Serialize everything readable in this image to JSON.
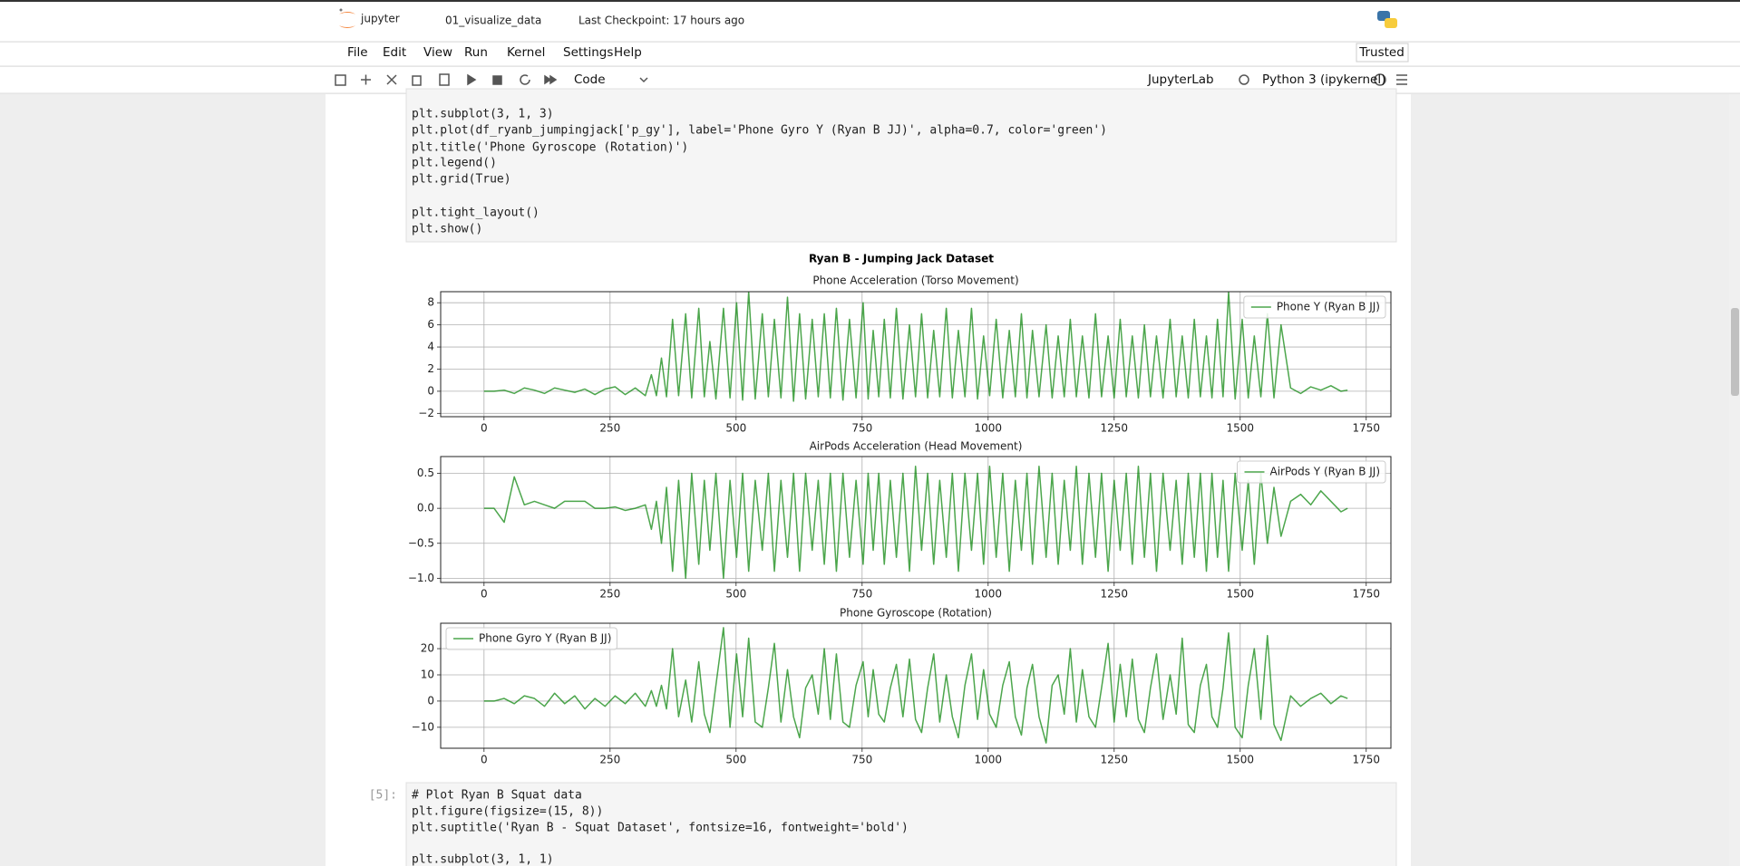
{
  "header": {
    "logo": "jupyter",
    "notebook_name": "01_visualize_data",
    "checkpoint": "Last Checkpoint: 17 hours ago"
  },
  "menu": [
    "File",
    "Edit",
    "View",
    "Run",
    "Kernel",
    "Settings",
    "Help"
  ],
  "trusted": "Trusted",
  "toolbar": {
    "cell_type": "Code",
    "jupyterlab": "JupyterLab",
    "kernel": "Python 3 (ipykernel)"
  },
  "cells": [
    {
      "lines": [
        "plt.subplot(3, 1, 3)",
        "plt.plot(df_ryanb_jumpingjack['p_gy'], label='Phone Gyro Y (Ryan B JJ)', alpha=0.7, color='green')",
        "plt.title('Phone Gyroscope (Rotation)')",
        "plt.legend()",
        "plt.grid(True)",
        "plt.tight_layout()",
        "plt.show()"
      ]
    },
    {
      "prompt": "[5]:",
      "lines": [
        "# Plot Ryan B Squat data",
        "plt.figure(figsize=(15, 8))",
        "plt.suptitle('Ryan B - Squat Dataset', fontsize=16, fontweight='bold')",
        "plt.subplot(3, 1, 1)"
      ]
    }
  ],
  "figure": {
    "suptitle": "Ryan B - Jumping Jack Dataset"
  },
  "chart_data": [
    {
      "type": "line",
      "title": "Phone Acceleration (Torso Movement)",
      "grid": true,
      "legend": "upper right",
      "xlim": [
        -86,
        1799
      ],
      "xticks": [
        0,
        250,
        500,
        750,
        1000,
        1250,
        1500,
        1750
      ],
      "ylim": [
        -2.3,
        9.0
      ],
      "yticks": [
        {
          "value": -2,
          "label": "−2"
        },
        0,
        2,
        4,
        6,
        8
      ],
      "x": [
        0,
        20,
        40,
        60,
        80,
        100,
        120,
        140,
        160,
        180,
        200,
        220,
        240,
        260,
        280,
        300,
        320,
        332,
        342,
        352,
        362,
        374,
        386,
        400,
        412,
        426,
        437,
        448,
        460,
        475,
        488,
        501,
        513,
        525,
        538,
        552,
        564,
        576,
        589,
        602,
        614,
        626,
        638,
        651,
        663,
        675,
        687,
        699,
        712,
        725,
        738,
        752,
        762,
        772,
        783,
        794,
        806,
        818,
        831,
        844,
        856,
        868,
        880,
        892,
        904,
        917,
        929,
        941,
        954,
        967,
        979,
        991,
        1003,
        1016,
        1029,
        1042,
        1054,
        1066,
        1077,
        1088,
        1101,
        1115,
        1127,
        1139,
        1151,
        1163,
        1175,
        1187,
        1200,
        1213,
        1225,
        1238,
        1250,
        1262,
        1274,
        1286,
        1298,
        1310,
        1322,
        1334,
        1347,
        1361,
        1373,
        1385,
        1397,
        1409,
        1421,
        1433,
        1444,
        1455,
        1466,
        1477,
        1490,
        1504,
        1516,
        1528,
        1541,
        1554,
        1567,
        1581,
        1600,
        1620,
        1640,
        1660,
        1680,
        1700,
        1713
      ],
      "series": [
        {
          "name": "Phone Y (Ryan B JJ)",
          "color": "green",
          "alpha": 0.7,
          "values": [
            0,
            0,
            0.1,
            -0.2,
            0.3,
            0.1,
            -0.2,
            0.3,
            0.1,
            -0.1,
            0.2,
            -0.3,
            0.2,
            0.4,
            -0.3,
            0.3,
            -0.4,
            1.5,
            -0.4,
            3,
            -0.5,
            6.5,
            -0.4,
            7,
            -0.6,
            7.5,
            -0.5,
            4.5,
            -0.7,
            7.5,
            -0.6,
            8,
            -0.8,
            9,
            -0.7,
            7,
            -0.5,
            6.5,
            -0.6,
            8.5,
            -0.9,
            7,
            -0.7,
            6.5,
            -0.5,
            7,
            -0.6,
            7.5,
            -0.8,
            6.5,
            -0.6,
            8,
            -0.7,
            5.5,
            -0.5,
            6.5,
            -0.6,
            7.5,
            -0.7,
            6,
            -0.5,
            7,
            -0.6,
            5.5,
            -0.5,
            7.5,
            -0.6,
            5.5,
            -0.5,
            7.5,
            -0.7,
            5,
            -0.4,
            6.5,
            -0.6,
            5.5,
            -0.5,
            7,
            -0.6,
            5.5,
            -0.5,
            6,
            -0.6,
            5,
            -0.5,
            6.5,
            -0.5,
            5,
            -0.6,
            7,
            -0.5,
            5,
            -0.6,
            6.5,
            -0.5,
            5,
            -0.6,
            6,
            -0.5,
            5,
            -0.6,
            6.5,
            -0.5,
            5,
            -0.6,
            6.5,
            -0.5,
            5,
            -0.6,
            6.5,
            -0.5,
            9,
            -0.7,
            6.5,
            -0.6,
            5,
            -0.5,
            7,
            -0.6,
            6,
            0.3,
            -0.2,
            0.4,
            0.1,
            0.5,
            0,
            0.1
          ]
        }
      ]
    },
    {
      "type": "line",
      "title": "AirPods Acceleration (Head Movement)",
      "grid": true,
      "legend": "upper right",
      "xlim": [
        -86,
        1799
      ],
      "xticks": [
        0,
        250,
        500,
        750,
        1000,
        1250,
        1500,
        1750
      ],
      "ylim": [
        -1.06,
        0.74
      ],
      "yticks": [
        {
          "value": -1,
          "label": "−1.0"
        },
        {
          "value": -0.5,
          "label": "−0.5"
        },
        {
          "value": 0,
          "label": "0.0"
        },
        0.5
      ],
      "x": [
        0,
        20,
        40,
        60,
        80,
        100,
        120,
        140,
        160,
        180,
        200,
        220,
        240,
        260,
        280,
        300,
        320,
        332,
        342,
        352,
        362,
        374,
        386,
        400,
        412,
        426,
        437,
        448,
        460,
        475,
        488,
        501,
        513,
        525,
        538,
        552,
        564,
        576,
        589,
        602,
        614,
        626,
        638,
        651,
        663,
        675,
        687,
        699,
        712,
        725,
        738,
        752,
        762,
        772,
        783,
        794,
        806,
        818,
        831,
        844,
        856,
        868,
        880,
        892,
        904,
        917,
        929,
        941,
        954,
        967,
        979,
        991,
        1003,
        1016,
        1029,
        1042,
        1054,
        1066,
        1077,
        1088,
        1101,
        1115,
        1127,
        1139,
        1151,
        1163,
        1175,
        1187,
        1200,
        1213,
        1225,
        1238,
        1250,
        1262,
        1274,
        1286,
        1298,
        1310,
        1322,
        1334,
        1347,
        1361,
        1373,
        1385,
        1397,
        1409,
        1421,
        1433,
        1444,
        1455,
        1466,
        1477,
        1490,
        1504,
        1516,
        1528,
        1541,
        1554,
        1567,
        1581,
        1600,
        1620,
        1640,
        1660,
        1680,
        1700,
        1713
      ],
      "series": [
        {
          "name": "AirPods Y (Ryan B JJ)",
          "color": "green",
          "alpha": 0.7,
          "values": [
            0,
            0,
            -0.2,
            0.45,
            0.05,
            0.1,
            0.05,
            0,
            0.1,
            0.1,
            0.1,
            0,
            0,
            0.02,
            -0.03,
            0,
            0.05,
            -0.3,
            0.1,
            -0.5,
            0.3,
            -0.9,
            0.4,
            -1.0,
            0.5,
            -0.8,
            0.4,
            -0.6,
            0.5,
            -1.0,
            0.4,
            -0.7,
            0.5,
            -0.9,
            0.4,
            -0.6,
            0.5,
            -0.9,
            0.4,
            -0.7,
            0.5,
            -0.9,
            0.5,
            -0.6,
            0.4,
            -0.8,
            0.5,
            -0.9,
            0.5,
            -0.7,
            0.4,
            -0.8,
            0.5,
            -0.6,
            0.5,
            -0.8,
            0.4,
            -0.7,
            0.5,
            -0.9,
            0.6,
            -0.6,
            0.5,
            -0.8,
            0.4,
            -0.7,
            0.5,
            -0.9,
            0.5,
            -0.6,
            0.5,
            -0.8,
            0.6,
            -0.7,
            0.5,
            -0.9,
            0.4,
            -0.6,
            0.5,
            -0.8,
            0.6,
            -0.7,
            0.5,
            -0.8,
            0.4,
            -0.6,
            0.6,
            -0.8,
            0.5,
            -0.7,
            0.5,
            -0.9,
            0.4,
            -0.6,
            0.5,
            -0.8,
            0.6,
            -0.7,
            0.5,
            -0.9,
            0.5,
            -0.6,
            0.4,
            -0.8,
            0.5,
            -0.7,
            0.5,
            -0.9,
            0.5,
            -0.7,
            0.4,
            -0.9,
            0.5,
            -0.6,
            0.4,
            -0.8,
            0.5,
            -0.5,
            0.3,
            -0.4,
            0.1,
            0.2,
            0.05,
            0.25,
            0.1,
            -0.05,
            0
          ]
        }
      ]
    },
    {
      "type": "line",
      "title": "Phone Gyroscope (Rotation)",
      "grid": true,
      "legend": "upper left",
      "xlim": [
        -86,
        1799
      ],
      "xticks": [
        0,
        250,
        500,
        750,
        1000,
        1250,
        1500,
        1750
      ],
      "ylim": [
        -18,
        29.7
      ],
      "yticks": [
        {
          "value": -10,
          "label": "−10"
        },
        0,
        10,
        20
      ],
      "x": [
        0,
        20,
        40,
        60,
        80,
        100,
        120,
        140,
        160,
        180,
        200,
        220,
        240,
        260,
        280,
        300,
        320,
        332,
        342,
        352,
        362,
        374,
        386,
        400,
        412,
        426,
        437,
        448,
        460,
        475,
        488,
        501,
        513,
        525,
        538,
        552,
        564,
        576,
        589,
        602,
        614,
        626,
        638,
        651,
        663,
        675,
        687,
        699,
        712,
        725,
        738,
        752,
        762,
        772,
        783,
        794,
        806,
        818,
        831,
        844,
        856,
        868,
        880,
        892,
        904,
        917,
        929,
        941,
        954,
        967,
        979,
        991,
        1003,
        1016,
        1029,
        1042,
        1054,
        1066,
        1077,
        1088,
        1101,
        1115,
        1127,
        1139,
        1151,
        1163,
        1175,
        1187,
        1200,
        1213,
        1225,
        1238,
        1250,
        1262,
        1274,
        1286,
        1298,
        1310,
        1322,
        1334,
        1347,
        1361,
        1373,
        1385,
        1397,
        1409,
        1421,
        1433,
        1444,
        1455,
        1466,
        1477,
        1490,
        1504,
        1516,
        1528,
        1541,
        1554,
        1567,
        1581,
        1600,
        1620,
        1640,
        1660,
        1680,
        1700,
        1713
      ],
      "series": [
        {
          "name": "Phone Gyro Y (Ryan B JJ)",
          "color": "green",
          "alpha": 0.7,
          "values": [
            0,
            0,
            1,
            -1,
            2,
            1,
            -2,
            3,
            -1,
            2,
            -3,
            1,
            -2,
            2,
            -1,
            3,
            -2,
            4,
            -2,
            6,
            -3,
            20,
            -6,
            8,
            -8,
            15,
            -5,
            -12,
            6,
            28,
            -10,
            18,
            -6,
            24,
            -8,
            -10,
            5,
            22,
            -8,
            12,
            -6,
            -14,
            5,
            10,
            -5,
            20,
            -7,
            18,
            -8,
            -10,
            6,
            15,
            -6,
            12,
            -5,
            -8,
            5,
            14,
            -6,
            16,
            -7,
            -12,
            5,
            18,
            -8,
            10,
            -6,
            -14,
            6,
            18,
            -7,
            12,
            -5,
            -10,
            6,
            15,
            -6,
            -13,
            5,
            14,
            -6,
            -16,
            6,
            10,
            -5,
            20,
            -8,
            12,
            -6,
            -10,
            5,
            22,
            -8,
            14,
            -6,
            16,
            -7,
            -12,
            5,
            18,
            -7,
            10,
            -5,
            24,
            -9,
            -12,
            6,
            14,
            -6,
            -10,
            5,
            26,
            -10,
            -14,
            6,
            20,
            -7,
            25,
            -9,
            -15,
            2,
            -2,
            1,
            3,
            -1,
            2,
            1
          ]
        }
      ]
    }
  ]
}
